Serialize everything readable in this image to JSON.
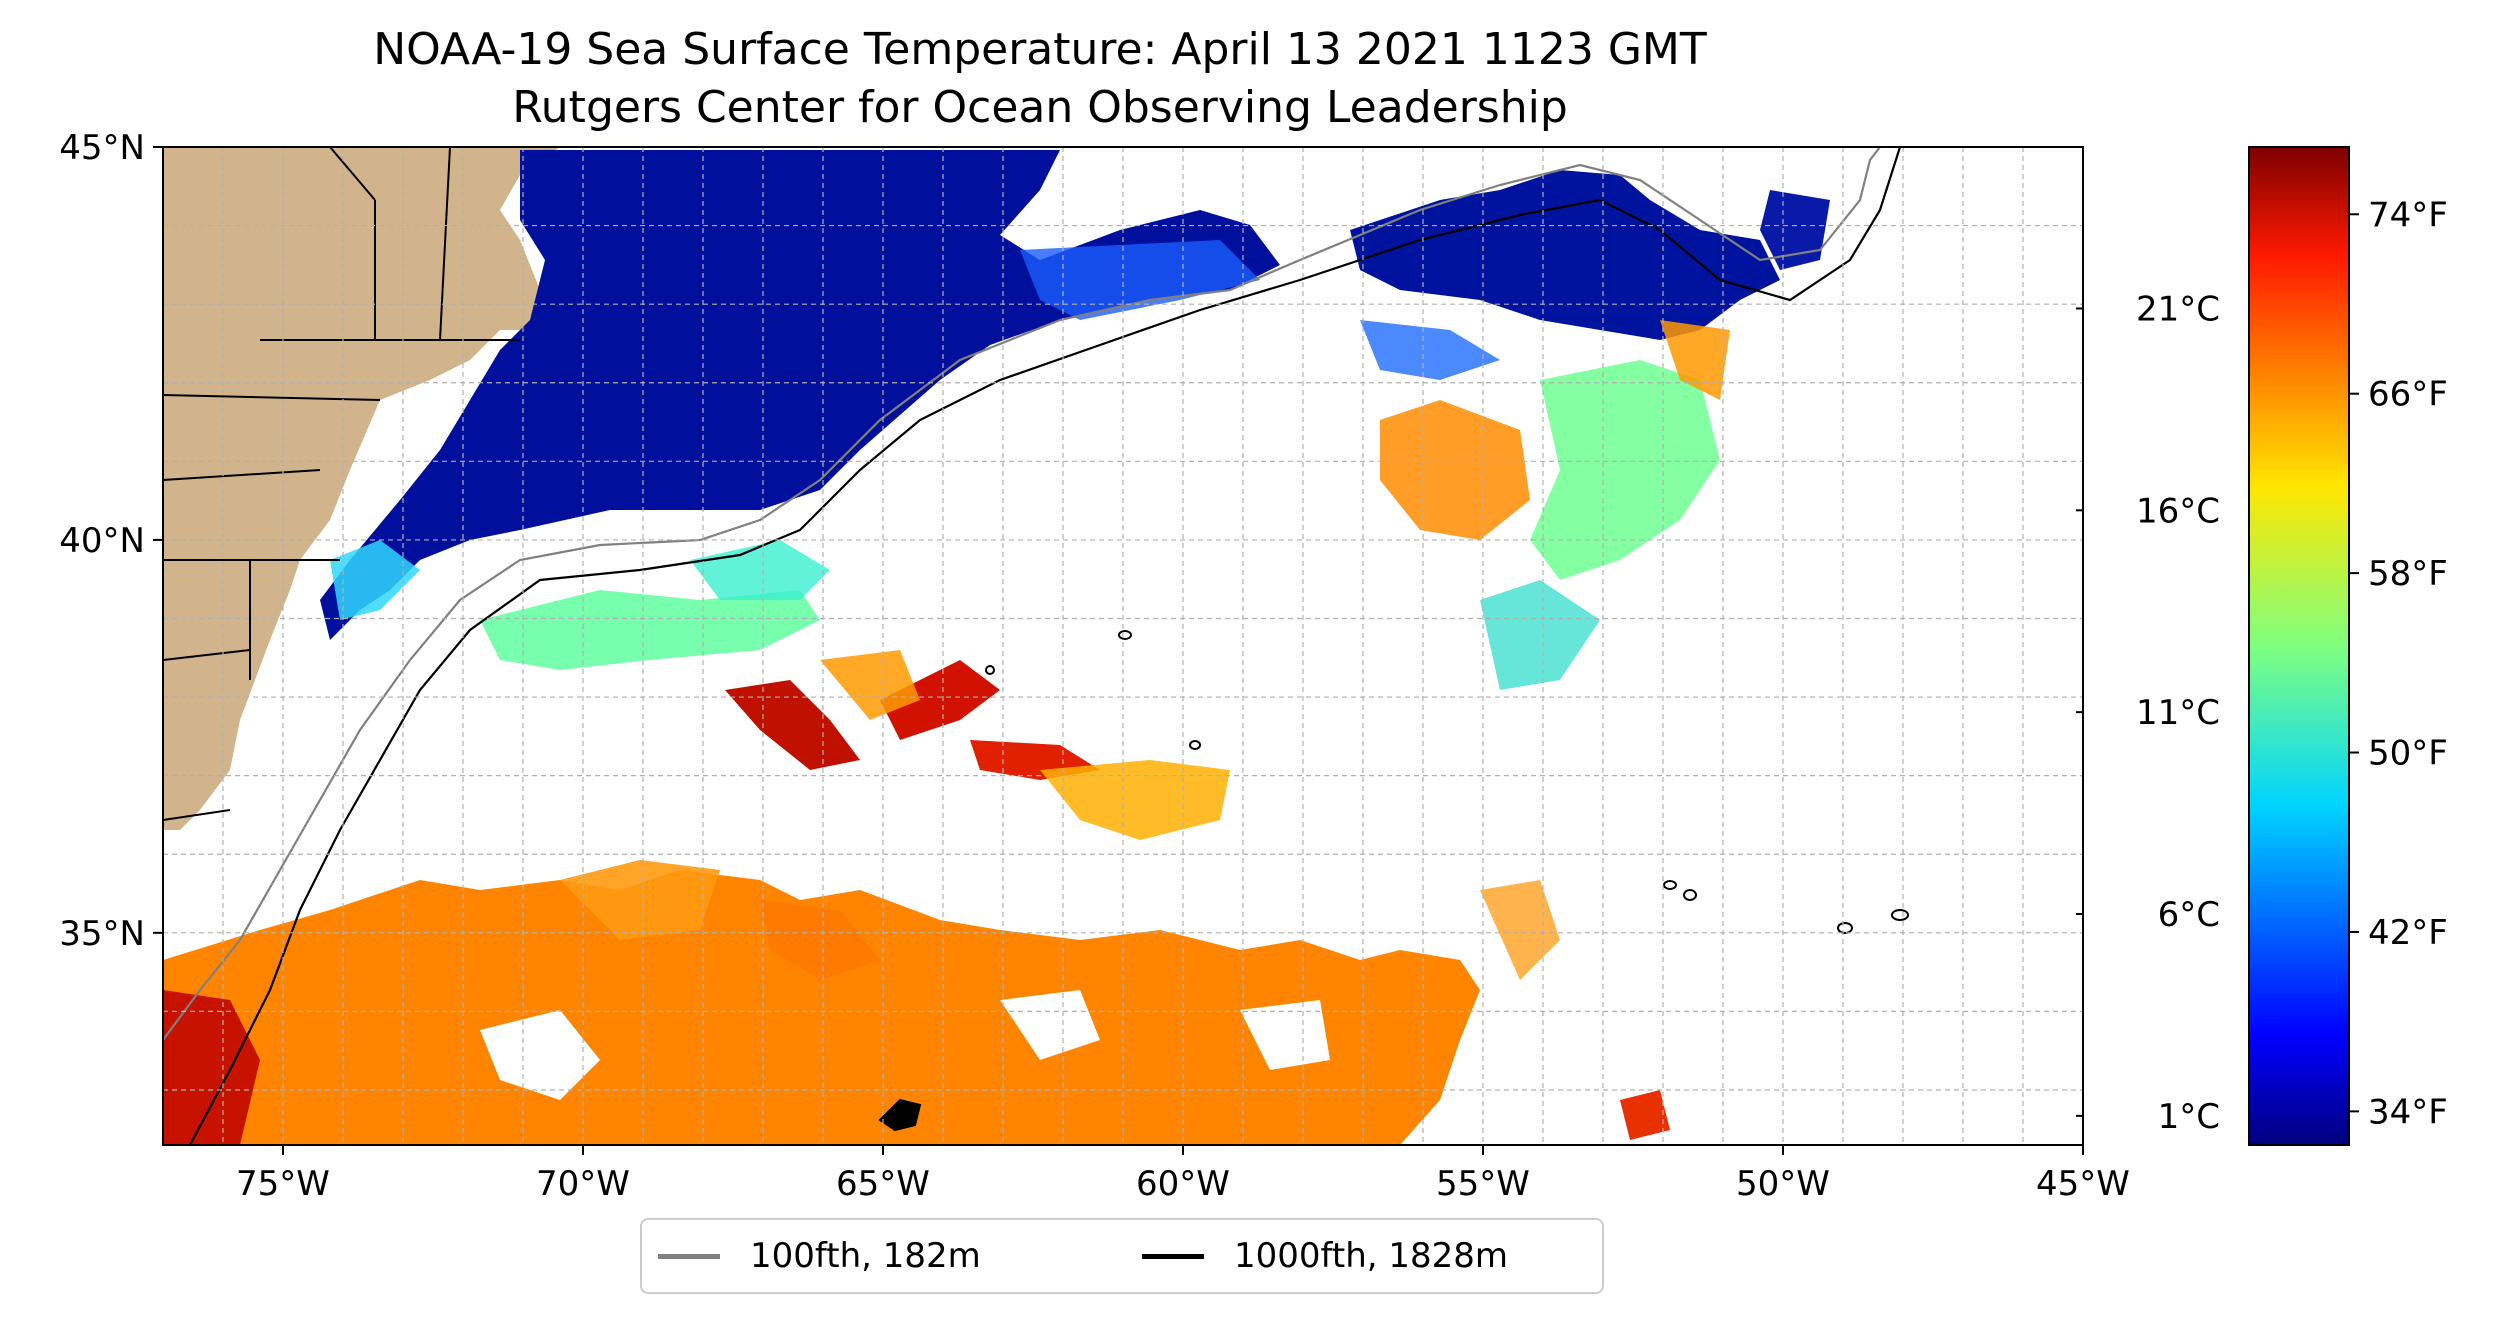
{
  "title": {
    "line1": "NOAA-19 Sea Surface Temperature: April 13 2021 1123 GMT",
    "line2": "Rutgers Center for Ocean Observing Leadership"
  },
  "map": {
    "lon_range": [
      -77,
      -45
    ],
    "lat_range": [
      32.3,
      45
    ],
    "x_ticks": [
      "75°W",
      "70°W",
      "65°W",
      "60°W",
      "55°W",
      "50°W",
      "45°W"
    ],
    "x_tick_values": [
      -75,
      -70,
      -65,
      -60,
      -55,
      -50,
      -45
    ],
    "y_ticks": [
      "45°N",
      "40°N",
      "35°N"
    ],
    "y_tick_values": [
      45,
      40,
      35
    ],
    "land_color": "#d2b48c",
    "grid": "dashed",
    "legend": {
      "placement": "bottom-center",
      "items": [
        {
          "label": "100fth, 182m",
          "color": "#808080"
        },
        {
          "label": "1000fth, 1828m",
          "color": "#000000"
        }
      ]
    }
  },
  "colorbar": {
    "colormap": "jet",
    "range_f": [
      32.5,
      77
    ],
    "celsius_ticks": [
      "21°C",
      "16°C",
      "11°C",
      "6°C",
      "1°C"
    ],
    "celsius_values": [
      21,
      16,
      11,
      6,
      1
    ],
    "fahrenheit_ticks": [
      "74°F",
      "66°F",
      "58°F",
      "50°F",
      "42°F",
      "34°F"
    ],
    "fahrenheit_values": [
      74,
      66,
      58,
      50,
      42,
      34
    ]
  }
}
